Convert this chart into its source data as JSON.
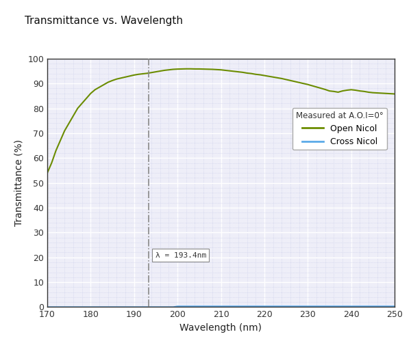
{
  "title": "Transmittance vs. Wavelength",
  "xlabel": "Wavelength (nm)",
  "ylabel": "Transmittance (%)",
  "xlim": [
    170,
    250
  ],
  "ylim": [
    0,
    100
  ],
  "xticks": [
    170,
    180,
    190,
    200,
    210,
    220,
    230,
    240,
    250
  ],
  "yticks": [
    0,
    10,
    20,
    30,
    40,
    50,
    60,
    70,
    80,
    90,
    100
  ],
  "open_nicol_color": "#6b8c00",
  "cross_nicol_color": "#5baae8",
  "vline_x": 193.4,
  "vline_label": "λ = 193.4nm",
  "legend_title": "Measured at A.O.I=0°",
  "legend_open": "Open Nicol",
  "legend_cross": "Cross Nicol",
  "background_color": "#ffffff",
  "plot_bg_color": "#eeeef8",
  "grid_major_color": "#ffffff",
  "grid_minor_color": "#c8cce8",
  "open_nicol_x": [
    170,
    171,
    172,
    173,
    174,
    175,
    176,
    177,
    178,
    179,
    180,
    181,
    182,
    183,
    184,
    185,
    186,
    187,
    188,
    189,
    190,
    191,
    192,
    193,
    194,
    195,
    196,
    197,
    198,
    199,
    200,
    201,
    202,
    203,
    204,
    205,
    206,
    207,
    208,
    209,
    210,
    211,
    212,
    213,
    214,
    215,
    216,
    217,
    218,
    219,
    220,
    221,
    222,
    223,
    224,
    225,
    226,
    227,
    228,
    229,
    230,
    231,
    232,
    233,
    234,
    235,
    236,
    237,
    238,
    239,
    240,
    241,
    242,
    243,
    244,
    245,
    246,
    247,
    248,
    249,
    250
  ],
  "open_nicol_y": [
    54,
    58,
    63,
    67,
    71,
    74,
    77,
    80,
    82,
    84,
    86,
    87.5,
    88.5,
    89.5,
    90.5,
    91.2,
    91.8,
    92.2,
    92.6,
    93.0,
    93.4,
    93.7,
    93.9,
    94.1,
    94.4,
    94.7,
    95.0,
    95.3,
    95.5,
    95.7,
    95.8,
    95.85,
    95.9,
    95.9,
    95.85,
    95.85,
    95.8,
    95.75,
    95.7,
    95.6,
    95.5,
    95.3,
    95.1,
    94.9,
    94.7,
    94.5,
    94.2,
    94.0,
    93.7,
    93.5,
    93.2,
    92.9,
    92.6,
    92.3,
    92.0,
    91.6,
    91.2,
    90.8,
    90.4,
    90.0,
    89.6,
    89.1,
    88.6,
    88.1,
    87.6,
    87.0,
    86.8,
    86.5,
    87.0,
    87.3,
    87.5,
    87.3,
    87.0,
    86.8,
    86.5,
    86.3,
    86.2,
    86.1,
    86.0,
    85.9,
    85.8
  ],
  "cross_nicol_y": [
    0,
    0,
    0,
    0,
    0,
    0,
    0,
    0,
    0,
    0,
    0,
    0,
    0,
    0,
    0,
    0,
    0,
    0,
    0,
    0,
    0,
    0,
    0,
    0,
    0,
    0,
    0,
    0,
    0,
    0,
    0.3,
    0.3,
    0.3,
    0.3,
    0.3,
    0.3,
    0.3,
    0.3,
    0.3,
    0.3,
    0.3,
    0.3,
    0.3,
    0.3,
    0.3,
    0.3,
    0.3,
    0.3,
    0.3,
    0.3,
    0.3,
    0.3,
    0.3,
    0.3,
    0.3,
    0.3,
    0.3,
    0.3,
    0.3,
    0.3,
    0.3,
    0.3,
    0.3,
    0.3,
    0.3,
    0.3,
    0.3,
    0.3,
    0.3,
    0.3,
    0.3,
    0.3,
    0.3,
    0.3,
    0.3,
    0.3,
    0.3,
    0.3,
    0.3,
    0.3,
    0.3
  ]
}
